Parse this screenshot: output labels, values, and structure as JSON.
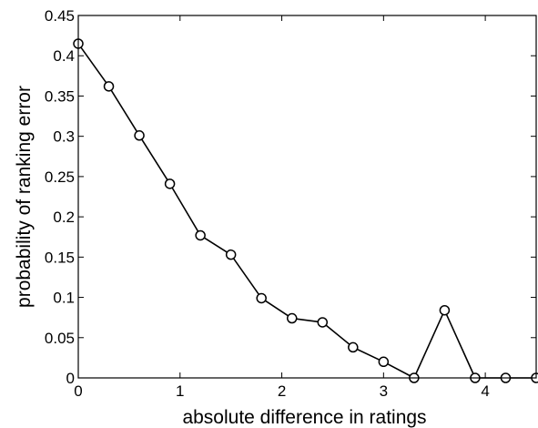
{
  "chart_data": {
    "type": "line",
    "title": "",
    "xlabel": "absolute difference in ratings",
    "ylabel": "probability of ranking error",
    "xlim": [
      0,
      4.5
    ],
    "ylim": [
      0,
      0.45
    ],
    "grid": false,
    "marker": "circle",
    "line_color": "#000000",
    "xticks": [
      0,
      1,
      2,
      3,
      4
    ],
    "xtick_labels": [
      "0",
      "1",
      "2",
      "3",
      "4"
    ],
    "yticks": [
      0,
      0.05,
      0.1,
      0.15,
      0.2,
      0.25,
      0.3,
      0.35,
      0.4,
      0.45
    ],
    "ytick_labels": [
      "0",
      "0.05",
      "0.1",
      "0.15",
      "0.2",
      "0.25",
      "0.3",
      "0.35",
      "0.4",
      "0.45"
    ],
    "series": [
      {
        "x": [
          0,
          0.3,
          0.6,
          0.9,
          1.2,
          1.5,
          1.8,
          2.1,
          2.4,
          2.7,
          3.0,
          3.3,
          3.6,
          3.9,
          4.2,
          4.5
        ],
        "y": [
          0.415,
          0.362,
          0.301,
          0.241,
          0.177,
          0.153,
          0.099,
          0.074,
          0.069,
          0.038,
          0.02,
          0.0,
          0.084,
          0.0,
          0.0,
          0.0
        ]
      }
    ]
  }
}
